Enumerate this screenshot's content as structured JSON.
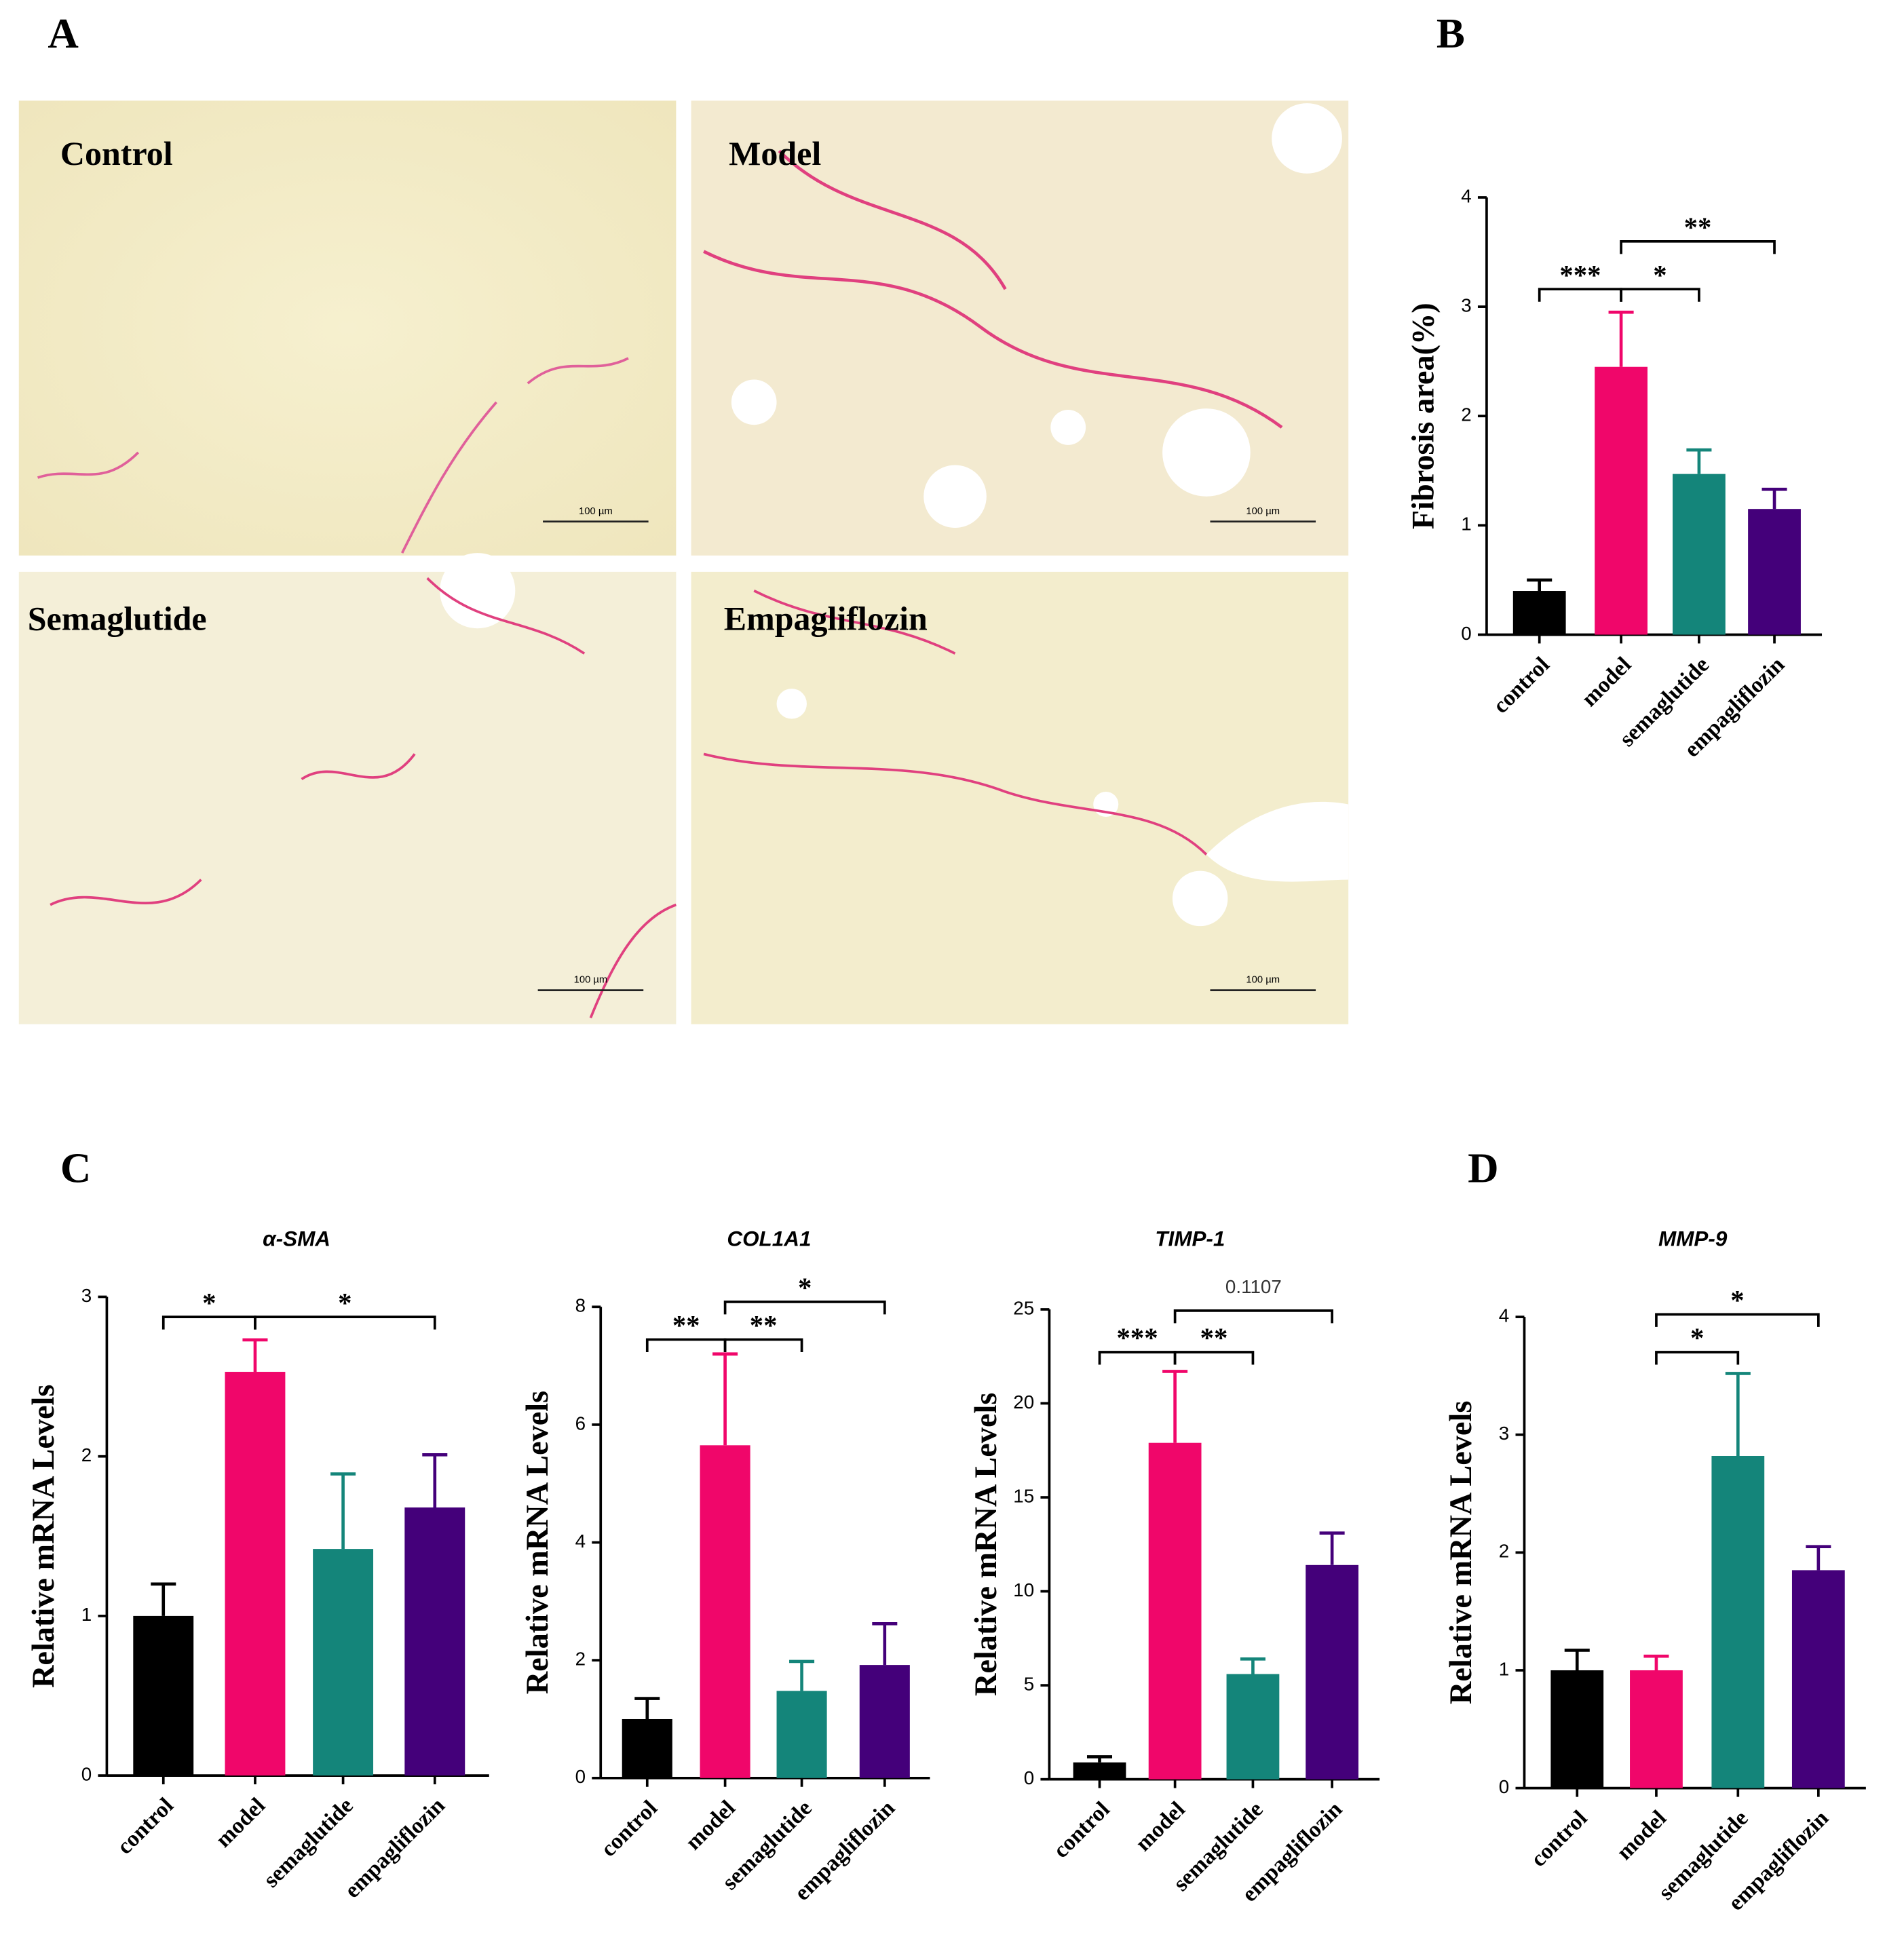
{
  "panel_labels": [
    "A",
    "B",
    "C",
    "D"
  ],
  "micrographs": [
    {
      "label": "Control",
      "scale_bar": "100 µm"
    },
    {
      "label": "Model",
      "scale_bar": "100 µm"
    },
    {
      "label": "Semaglutide",
      "scale_bar": "100 µm"
    },
    {
      "label": "Empagliflozin",
      "scale_bar": "100 µm"
    }
  ],
  "chart_data": [
    {
      "type": "bar",
      "ylabel": "Fibrosis area(%)",
      "categories": [
        "control",
        "model",
        "semaglutide",
        "empagliflozin"
      ],
      "values": [
        0.4,
        2.45,
        1.47,
        1.15
      ],
      "errors": [
        0.1,
        0.5,
        0.22,
        0.18
      ],
      "colors": [
        "#000000",
        "#f0066a",
        "#14857a",
        "#44007a"
      ],
      "ylim": [
        0,
        4
      ],
      "yticks": [
        0,
        1,
        2,
        3,
        4
      ],
      "annotations": [
        "***",
        "*",
        "**"
      ]
    },
    {
      "type": "bar",
      "title": "α-SMA",
      "ylabel": "Relative mRNA Levels",
      "categories": [
        "control",
        "model",
        "semaglutide",
        "empagliflozin"
      ],
      "values": [
        1.0,
        2.53,
        1.42,
        1.68
      ],
      "errors": [
        0.2,
        0.2,
        0.47,
        0.33
      ],
      "colors": [
        "#000000",
        "#f0066a",
        "#14857a",
        "#44007a"
      ],
      "ylim": [
        0,
        3
      ],
      "yticks": [
        0,
        1,
        2,
        3
      ],
      "annotations": [
        "*",
        "*"
      ]
    },
    {
      "type": "bar",
      "title": "COL1A1",
      "ylabel": "Relative mRNA Levels",
      "categories": [
        "control",
        "model",
        "semaglutide",
        "empagliflozin"
      ],
      "values": [
        1.0,
        5.65,
        1.48,
        1.92
      ],
      "errors": [
        0.35,
        1.55,
        0.5,
        0.7
      ],
      "colors": [
        "#000000",
        "#f0066a",
        "#14857a",
        "#44007a"
      ],
      "ylim": [
        0,
        8
      ],
      "yticks": [
        0,
        2,
        4,
        6,
        8
      ],
      "annotations": [
        "**",
        "**",
        "*"
      ]
    },
    {
      "type": "bar",
      "title": "TIMP-1",
      "ylabel": "Relative mRNA Levels",
      "categories": [
        "control",
        "model",
        "semaglutide",
        "empagliflozin"
      ],
      "values": [
        0.9,
        17.9,
        5.6,
        11.4
      ],
      "errors": [
        0.3,
        3.8,
        0.8,
        1.7
      ],
      "colors": [
        "#000000",
        "#f0066a",
        "#14857a",
        "#44007a"
      ],
      "ylim": [
        0,
        25
      ],
      "yticks": [
        0,
        5,
        10,
        15,
        20,
        25
      ],
      "annotations": [
        "***",
        "**",
        "0.1107"
      ]
    },
    {
      "type": "bar",
      "title": "MMP-9",
      "ylabel": "Relative mRNA Levels",
      "categories": [
        "control",
        "model",
        "semaglutide",
        "empagliflozin"
      ],
      "values": [
        1.0,
        1.0,
        2.82,
        1.85
      ],
      "errors": [
        0.17,
        0.12,
        0.7,
        0.2
      ],
      "colors": [
        "#000000",
        "#f0066a",
        "#14857a",
        "#44007a"
      ],
      "ylim": [
        0,
        4
      ],
      "yticks": [
        0,
        1,
        2,
        3,
        4
      ],
      "annotations": [
        "*",
        "*"
      ]
    }
  ]
}
